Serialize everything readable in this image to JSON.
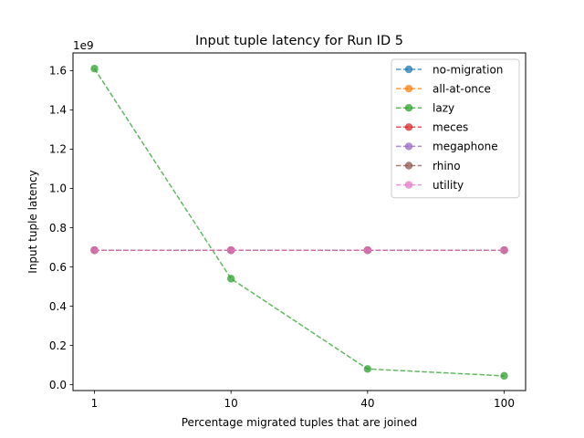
{
  "chart_data": {
    "type": "line",
    "title": "Input tuple latency for Run ID 5",
    "xlabel": "Percentage migrated tuples that are joined",
    "ylabel": "Input tuple latency",
    "y_offset_label": "1e9",
    "categories": [
      "1",
      "10",
      "40",
      "100"
    ],
    "ylim": [
      -0.03,
      1.69
    ],
    "yticks": [
      0.0,
      0.2,
      0.4,
      0.6,
      0.8,
      1.0,
      1.2,
      1.4,
      1.6
    ],
    "ytick_labels": [
      "0.0",
      "0.2",
      "0.4",
      "0.6",
      "0.8",
      "1.0",
      "1.2",
      "1.4",
      "1.6"
    ],
    "legend_position": "top-right",
    "grid": false,
    "series": [
      {
        "name": "no-migration",
        "color": "#1f77b4",
        "values": [
          0.685,
          0.685,
          0.685,
          0.685
        ]
      },
      {
        "name": "all-at-once",
        "color": "#ff7f0e",
        "values": [
          0.685,
          0.685,
          0.685,
          0.685
        ]
      },
      {
        "name": "lazy",
        "color": "#2ca02c",
        "values": [
          1.61,
          0.54,
          0.08,
          0.045
        ]
      },
      {
        "name": "meces",
        "color": "#d62728",
        "values": [
          0.685,
          0.685,
          0.685,
          0.685
        ]
      },
      {
        "name": "megaphone",
        "color": "#9467bd",
        "values": [
          0.685,
          0.685,
          0.685,
          0.685
        ]
      },
      {
        "name": "rhino",
        "color": "#8c564b",
        "values": [
          0.685,
          0.685,
          0.685,
          0.685
        ]
      },
      {
        "name": "utility",
        "color": "#e377c2",
        "values": [
          0.685,
          0.685,
          0.685,
          0.685
        ]
      }
    ]
  }
}
